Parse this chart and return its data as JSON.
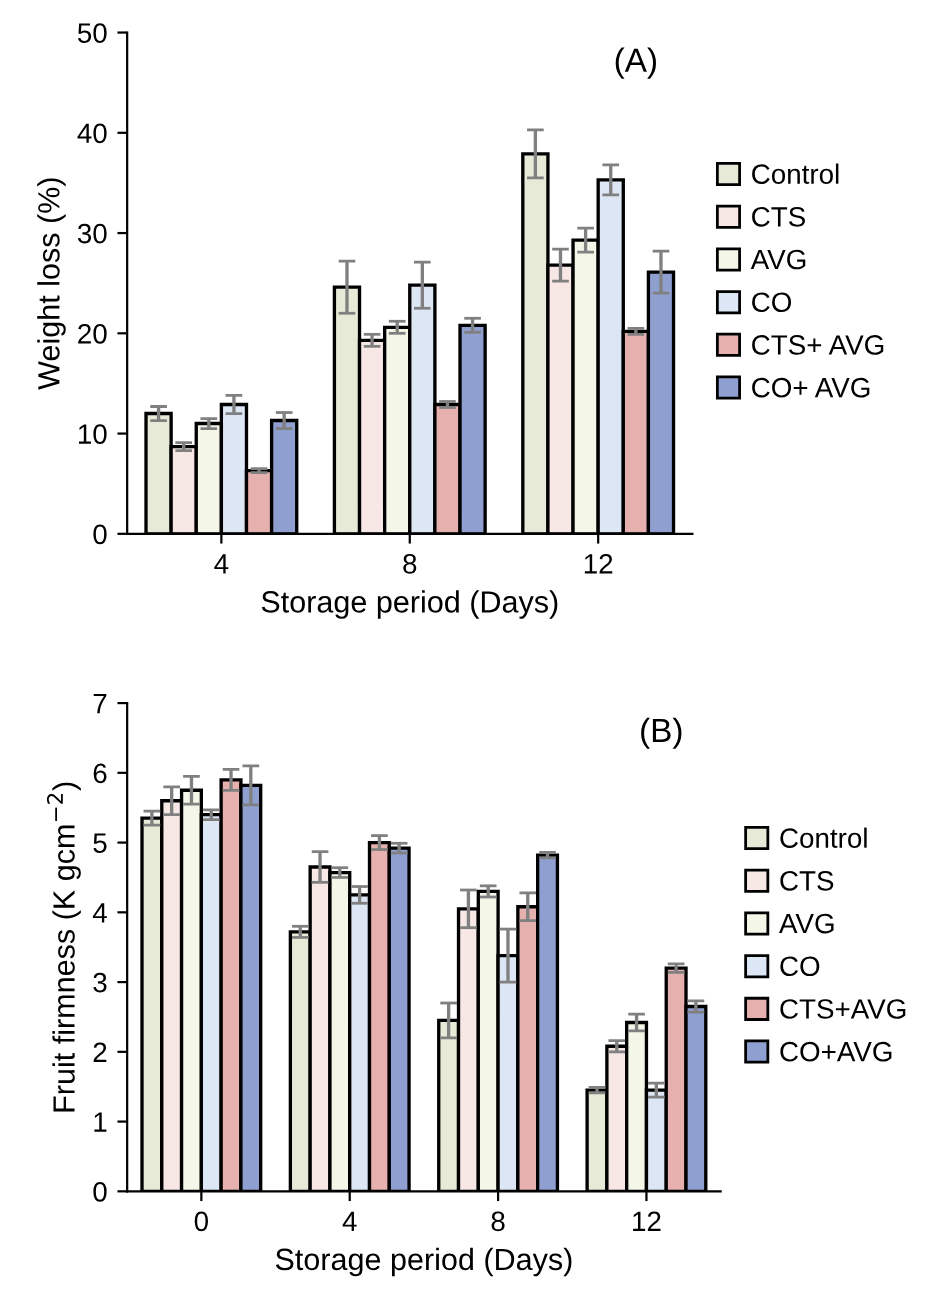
{
  "chart_data": [
    {
      "type": "bar",
      "categories": [
        "4",
        "8",
        "12"
      ],
      "xlabel": "Storage period (Days)",
      "ylabel": "Weight loss (%)",
      "ylim": [
        0,
        50
      ],
      "yticks": [
        0,
        10,
        20,
        30,
        40,
        50
      ],
      "legend": "right",
      "annotations": [
        "(A)"
      ],
      "series": [
        {
          "name": "Control",
          "color": "#e8ead8",
          "values": [
            12.0,
            24.6,
            37.9
          ],
          "errors": [
            0.7,
            2.6,
            2.4
          ]
        },
        {
          "name": "CTS",
          "color": "#f7e8e6",
          "values": [
            8.7,
            19.3,
            26.8
          ],
          "errors": [
            0.4,
            0.6,
            1.6
          ]
        },
        {
          "name": "AVG",
          "color": "#f4f6e8",
          "values": [
            11.0,
            20.6,
            29.3
          ],
          "errors": [
            0.5,
            0.6,
            1.2
          ]
        },
        {
          "name": "CO",
          "color": "#dde6f4",
          "values": [
            12.9,
            24.8,
            35.3
          ],
          "errors": [
            0.9,
            2.3,
            1.5
          ]
        },
        {
          "name": "CTS+ AVG",
          "color": "#e5b0ae",
          "values": [
            6.3,
            12.9,
            20.2
          ],
          "errors": [
            0.2,
            0.3,
            0.3
          ]
        },
        {
          "name": "CO+ AVG",
          "color": "#8f9fd0",
          "values": [
            11.3,
            20.8,
            26.1
          ],
          "errors": [
            0.8,
            0.7,
            2.1
          ]
        }
      ]
    },
    {
      "type": "bar",
      "categories": [
        "0",
        "4",
        "8",
        "12"
      ],
      "xlabel": "Storage period (Days)",
      "ylabel": "Fruit firmness (K gcm$^{−2}$)",
      "ylim": [
        0,
        7
      ],
      "yticks": [
        0,
        1,
        2,
        3,
        4,
        5,
        6,
        7
      ],
      "legend": "right",
      "annotations": [
        "(B)"
      ],
      "series": [
        {
          "name": "Control",
          "color": "#e8ead8",
          "values": [
            5.35,
            3.72,
            2.45,
            1.45
          ],
          "errors": [
            0.1,
            0.08,
            0.25,
            0.04
          ]
        },
        {
          "name": "CTS",
          "color": "#f7e8e6",
          "values": [
            5.6,
            4.65,
            4.05,
            2.08
          ],
          "errors": [
            0.2,
            0.22,
            0.27,
            0.08
          ]
        },
        {
          "name": "AVG",
          "color": "#f4f6e8",
          "values": [
            5.75,
            4.57,
            4.3,
            2.42
          ],
          "errors": [
            0.2,
            0.07,
            0.08,
            0.12
          ]
        },
        {
          "name": "CO",
          "color": "#dde6f4",
          "values": [
            5.4,
            4.25,
            3.38,
            1.45
          ],
          "errors": [
            0.07,
            0.12,
            0.38,
            0.1
          ]
        },
        {
          "name": "CTS+AVG",
          "color": "#e5b0ae",
          "values": [
            5.9,
            5.0,
            4.08,
            3.2
          ],
          "errors": [
            0.15,
            0.1,
            0.2,
            0.06
          ]
        },
        {
          "name": "CO+AVG",
          "color": "#8f9fd0",
          "values": [
            5.82,
            4.92,
            4.82,
            2.65
          ],
          "errors": [
            0.28,
            0.07,
            0.04,
            0.08
          ]
        }
      ]
    }
  ]
}
